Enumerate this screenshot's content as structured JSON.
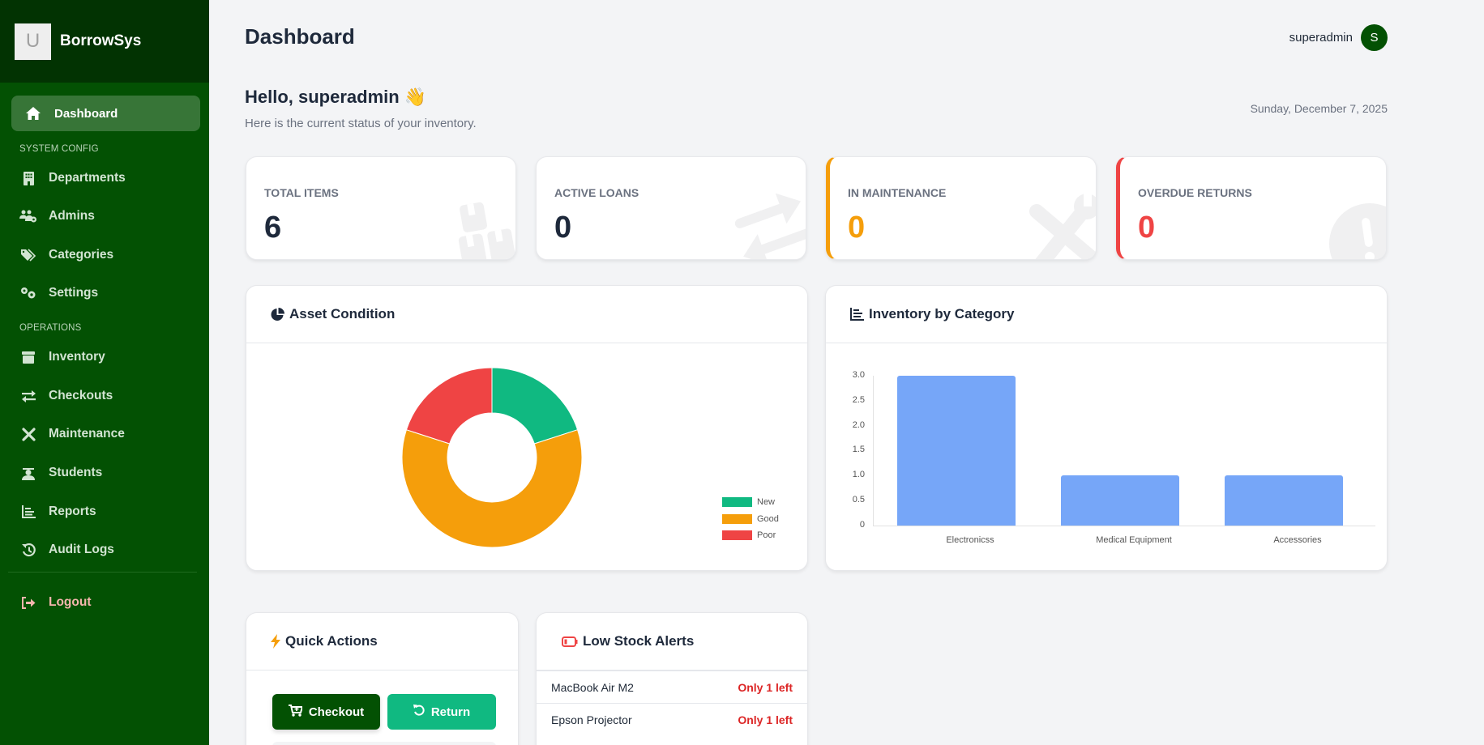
{
  "sidebar": {
    "brand": {
      "logo_letter": "U",
      "name": "BorrowSys"
    },
    "active_item": {
      "label": "Dashboard",
      "icon": "home-icon"
    },
    "sections": [
      {
        "title": "SYSTEM CONFIG"
      },
      {
        "title": "OPERATIONS"
      }
    ],
    "items": [
      {
        "label": "Departments",
        "icon": "building-icon"
      },
      {
        "label": "Admins",
        "icon": "users-cog-icon"
      },
      {
        "label": "Categories",
        "icon": "tags-icon"
      },
      {
        "label": "Settings",
        "icon": "gears-icon"
      },
      {
        "label": "Inventory",
        "icon": "box-icon"
      },
      {
        "label": "Checkouts",
        "icon": "exchange-icon"
      },
      {
        "label": "Maintenance",
        "icon": "tools-icon"
      },
      {
        "label": "Students",
        "icon": "graduate-icon"
      },
      {
        "label": "Reports",
        "icon": "chart-bar-icon"
      },
      {
        "label": "Audit Logs",
        "icon": "history-icon"
      }
    ],
    "logout": {
      "label": "Logout",
      "icon": "sign-out-icon"
    }
  },
  "header": {
    "title": "Dashboard",
    "user": {
      "name": "superadmin",
      "avatar_letter": "S"
    }
  },
  "welcome": {
    "greeting": "Hello, superadmin 👋",
    "subtitle": "Here is the current status of your inventory.",
    "date": "Sunday, December 7, 2025"
  },
  "stats": [
    {
      "label": "TOTAL ITEMS",
      "value": "6",
      "color": "#1e293b",
      "icon": "boxes-icon"
    },
    {
      "label": "ACTIVE LOANS",
      "value": "0",
      "color": "#1e293b",
      "icon": "exchange-icon"
    },
    {
      "label": "IN MAINTENANCE",
      "value": "0",
      "color": "#f59e0b",
      "icon": "tools-icon"
    },
    {
      "label": "OVERDUE RETURNS",
      "value": "0",
      "color": "#ef4444",
      "icon": "exclamation-circle-icon"
    }
  ],
  "panels": {
    "asset_condition": {
      "title": "Asset Condition",
      "icon": "pie-chart-icon"
    },
    "inventory_by_category": {
      "title": "Inventory by Category",
      "icon": "bar-chart-icon"
    },
    "quick_actions": {
      "title": "Quick Actions",
      "icon": "bolt-icon",
      "buttons": [
        {
          "label": "Checkout",
          "icon": "cart-plus-icon"
        },
        {
          "label": "Return",
          "icon": "undo-icon"
        }
      ]
    },
    "low_stock": {
      "title": "Low Stock Alerts",
      "icon": "battery-empty-icon",
      "items": [
        {
          "name": "MacBook Air M2",
          "status": "Only 1 left"
        },
        {
          "name": "Epson Projector",
          "status": "Only 1 left"
        }
      ]
    }
  },
  "chart_data": [
    {
      "type": "pie",
      "title": "Asset Condition",
      "variant": "doughnut",
      "categories": [
        "New",
        "Good",
        "Poor"
      ],
      "values": [
        1,
        3,
        1
      ],
      "colors": [
        "#10b981",
        "#f59e0b",
        "#ef4444"
      ],
      "legend_position": "right"
    },
    {
      "type": "bar",
      "title": "Inventory by Category",
      "categories": [
        "Electronicss",
        "Medical Equipment",
        "Accessories"
      ],
      "values": [
        3,
        1,
        1
      ],
      "color": "#76a6f8",
      "xlabel": "",
      "ylabel": "",
      "ylim": [
        0,
        3
      ],
      "yticks": [
        "3.0",
        "2.5",
        "2.0",
        "1.5",
        "1.0",
        "0.5",
        "0"
      ],
      "grid": false,
      "legend": false
    }
  ]
}
